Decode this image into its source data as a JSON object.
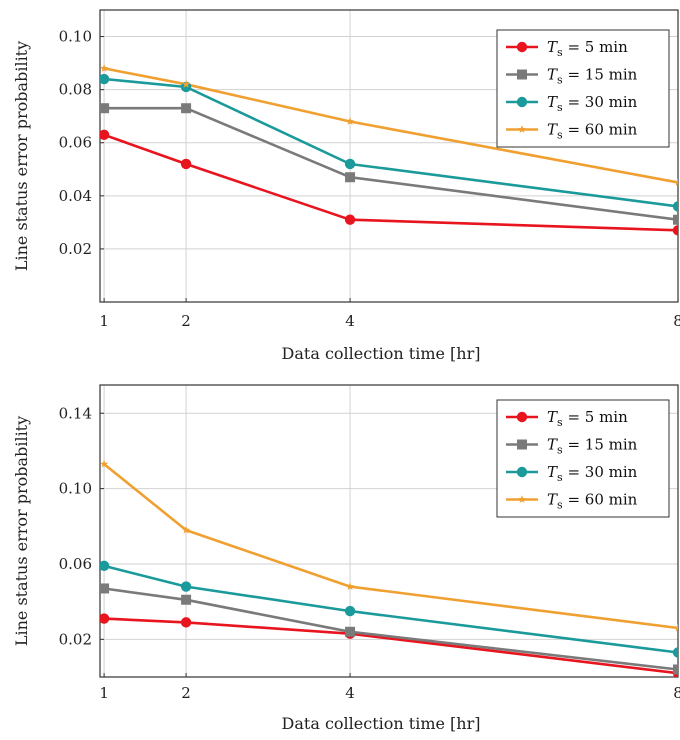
{
  "chart_data": [
    {
      "type": "line",
      "xlabel": "Data collection time [hr]",
      "ylabel": "Line status error probability",
      "x": [
        1,
        2,
        4,
        8
      ],
      "xticks": [
        "1",
        "2",
        "4",
        "8"
      ],
      "xlim": [
        0.95,
        8.0
      ],
      "yticks": [
        "0.02",
        "0.04",
        "0.06",
        "0.08",
        "0.10"
      ],
      "ytick_values": [
        0.02,
        0.04,
        0.06,
        0.08,
        0.1
      ],
      "ylim": [
        0.0,
        0.11
      ],
      "grid": true,
      "legend_position": "top-right",
      "series": [
        {
          "name": "T_s = 5 min",
          "legend_var": "T",
          "legend_sub": "s",
          "legend_rest": " = 5 min",
          "color": "#e8141e",
          "marker": "circle",
          "values": [
            0.063,
            0.052,
            0.031,
            0.027
          ]
        },
        {
          "name": "T_s = 15 min",
          "legend_var": "T",
          "legend_sub": "s",
          "legend_rest": " = 15 min",
          "color": "#7a7a7a",
          "marker": "square",
          "values": [
            0.073,
            0.073,
            0.047,
            0.031
          ]
        },
        {
          "name": "T_s = 30 min",
          "legend_var": "T",
          "legend_sub": "s",
          "legend_rest": " = 30 min",
          "color": "#1a9a9a",
          "marker": "circle",
          "values": [
            0.084,
            0.081,
            0.052,
            0.036
          ]
        },
        {
          "name": "T_s = 60 min",
          "legend_var": "T",
          "legend_sub": "s",
          "legend_rest": " = 60 min",
          "color": "#f0a030",
          "marker": "star",
          "values": [
            0.088,
            0.082,
            0.068,
            0.045
          ]
        }
      ]
    },
    {
      "type": "line",
      "xlabel": "Data collection time [hr]",
      "ylabel": "Line status error probability",
      "x": [
        1,
        2,
        4,
        8
      ],
      "xticks": [
        "1",
        "2",
        "4",
        "8"
      ],
      "xlim": [
        0.95,
        8.0
      ],
      "yticks": [
        "0.02",
        "0.06",
        "0.10",
        "0.14"
      ],
      "ytick_values": [
        0.02,
        0.06,
        0.1,
        0.14
      ],
      "ylim": [
        0.0,
        0.155
      ],
      "grid": true,
      "legend_position": "top-right",
      "series": [
        {
          "name": "T_s = 5 min",
          "legend_var": "T",
          "legend_sub": "s",
          "legend_rest": " = 5 min",
          "color": "#e8141e",
          "marker": "circle",
          "values": [
            0.031,
            0.029,
            0.023,
            0.002
          ]
        },
        {
          "name": "T_s = 15 min",
          "legend_var": "T",
          "legend_sub": "s",
          "legend_rest": " = 15 min",
          "color": "#7a7a7a",
          "marker": "square",
          "values": [
            0.047,
            0.041,
            0.024,
            0.004
          ]
        },
        {
          "name": "T_s = 30 min",
          "legend_var": "T",
          "legend_sub": "s",
          "legend_rest": " = 30 min",
          "color": "#1a9a9a",
          "marker": "circle",
          "values": [
            0.059,
            0.048,
            0.035,
            0.013
          ]
        },
        {
          "name": "T_s = 60 min",
          "legend_var": "T",
          "legend_sub": "s",
          "legend_rest": " = 60 min",
          "color": "#f0a030",
          "marker": "star",
          "values": [
            0.113,
            0.078,
            0.048,
            0.026
          ]
        }
      ]
    }
  ]
}
